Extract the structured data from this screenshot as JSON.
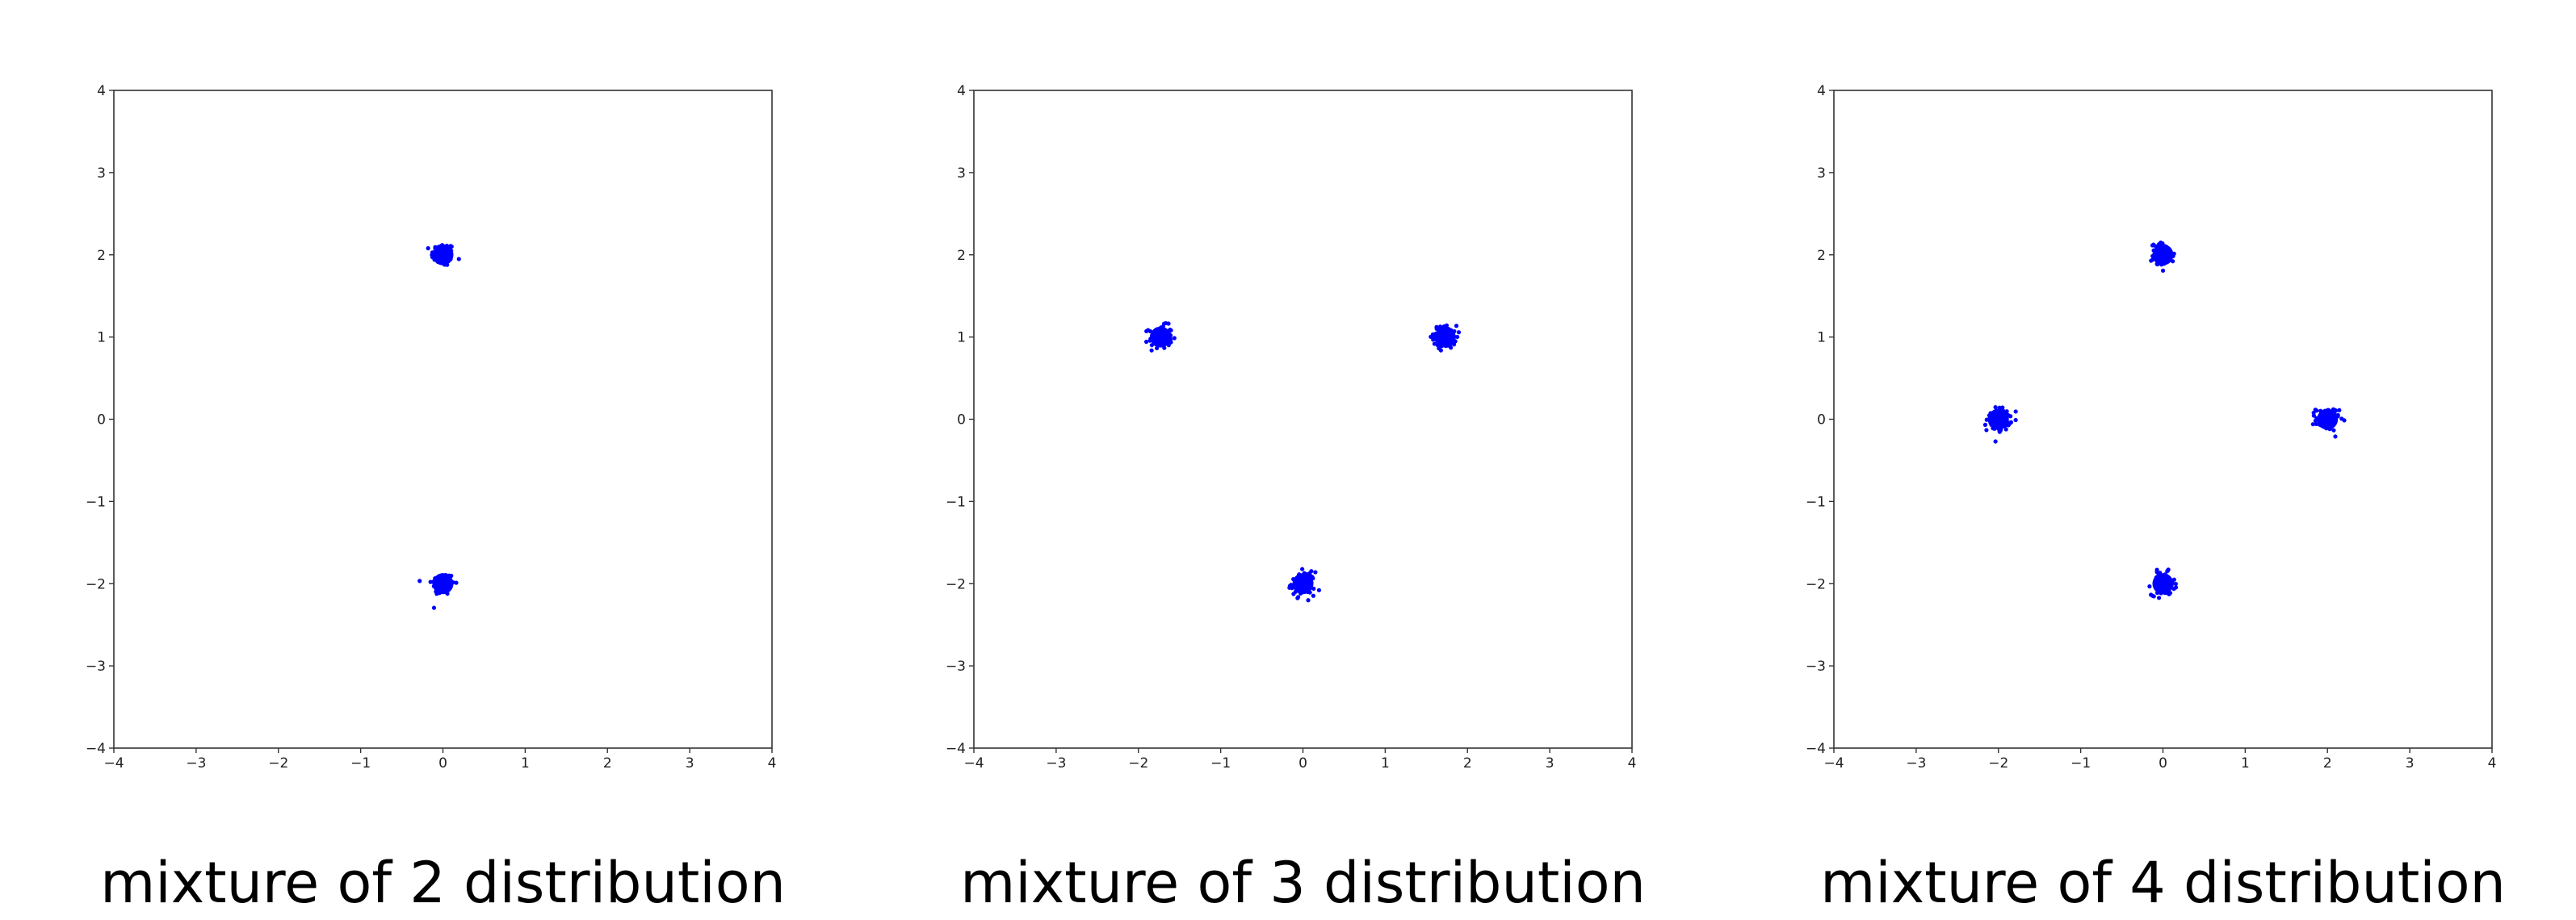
{
  "colors": {
    "points": "#0000ff",
    "axes": "#333333",
    "background": "#ffffff"
  },
  "chart_data": [
    {
      "type": "scatter",
      "caption": "mixture of 2 distribution",
      "xlim": [
        -4,
        4
      ],
      "ylim": [
        -4,
        4
      ],
      "xticks": [
        "-4",
        "-3",
        "-2",
        "-1",
        "0",
        "1",
        "2",
        "3",
        "4"
      ],
      "yticks": [
        "-4",
        "-3",
        "-2",
        "-1",
        "0",
        "1",
        "2",
        "3",
        "4"
      ],
      "grid": false,
      "clusters": [
        {
          "x": 0,
          "y": 2
        },
        {
          "x": 0,
          "y": -2
        }
      ],
      "cluster_std": 0.07
    },
    {
      "type": "scatter",
      "caption": "mixture of 3 distribution",
      "xlim": [
        -4,
        4
      ],
      "ylim": [
        -4,
        4
      ],
      "xticks": [
        "-4",
        "-3",
        "-2",
        "-1",
        "0",
        "1",
        "2",
        "3",
        "4"
      ],
      "yticks": [
        "-4",
        "-3",
        "-2",
        "-1",
        "0",
        "1",
        "2",
        "3",
        "4"
      ],
      "grid": false,
      "clusters": [
        {
          "x": -1.73,
          "y": 1
        },
        {
          "x": 1.73,
          "y": 1
        },
        {
          "x": 0,
          "y": -2
        }
      ],
      "cluster_std": 0.07
    },
    {
      "type": "scatter",
      "caption": "mixture of 4 distribution",
      "xlim": [
        -4,
        4
      ],
      "ylim": [
        -4,
        4
      ],
      "xticks": [
        "-4",
        "-3",
        "-2",
        "-1",
        "0",
        "1",
        "2",
        "3",
        "4"
      ],
      "yticks": [
        "-4",
        "-3",
        "-2",
        "-1",
        "0",
        "1",
        "2",
        "3",
        "4"
      ],
      "grid": false,
      "clusters": [
        {
          "x": 0,
          "y": 2
        },
        {
          "x": -2,
          "y": 0
        },
        {
          "x": 2,
          "y": 0
        },
        {
          "x": 0,
          "y": -2
        }
      ],
      "cluster_std": 0.07
    }
  ]
}
